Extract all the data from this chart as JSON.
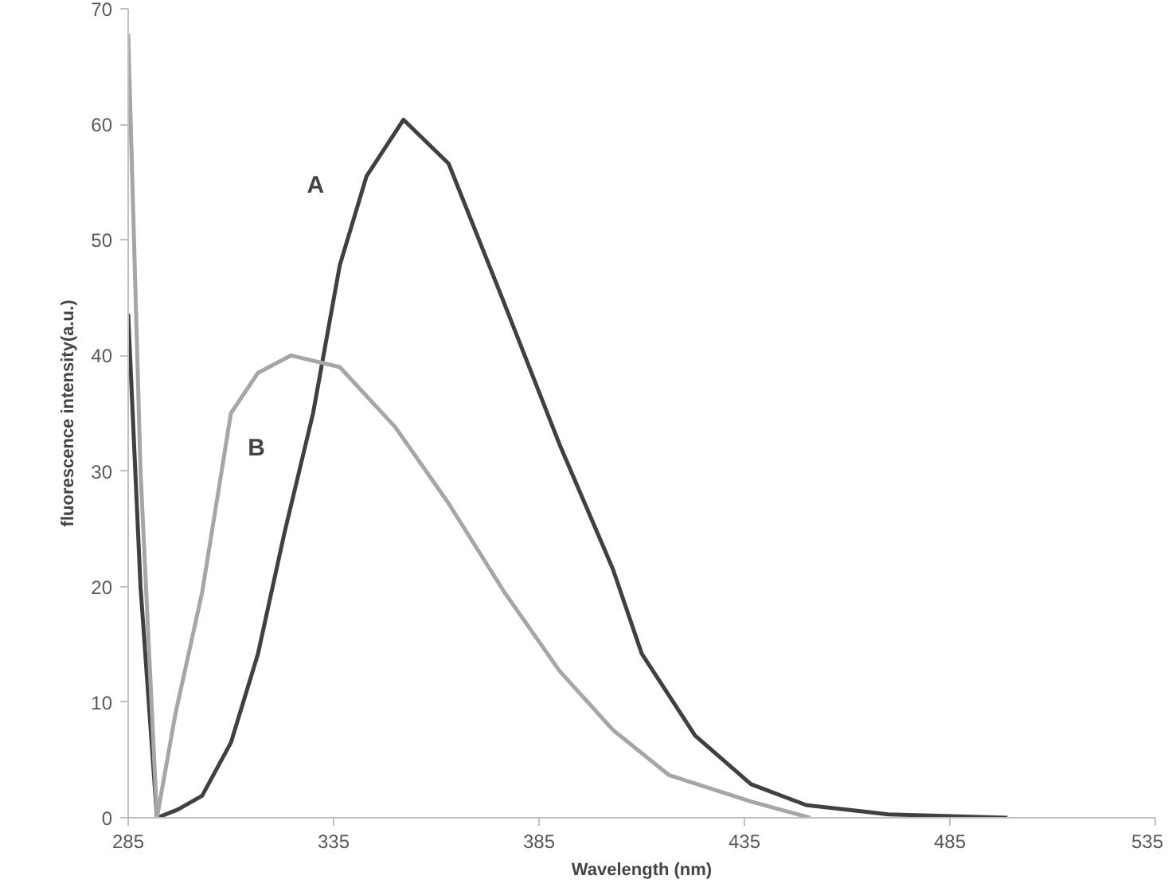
{
  "chart_data": {
    "type": "line",
    "xlabel": "Wavelength (nm)",
    "ylabel": "fluorescence intensity(a.u.)",
    "xlim": [
      285,
      535
    ],
    "xticks": [
      285,
      335,
      385,
      435,
      485,
      535
    ],
    "ylim": [
      0,
      70
    ],
    "yticks": [
      0,
      10,
      20,
      30,
      40,
      50,
      60,
      70
    ],
    "grid": false,
    "marker": "none",
    "line_style": "solid",
    "series": [
      {
        "name": "A",
        "color": "#404040",
        "x": [
          285,
          288,
          292,
          297,
          303,
          310,
          316.6,
          323,
          330,
          336.5,
          343,
          352,
          363,
          376,
          390,
          403,
          410,
          423,
          436.6,
          450,
          470,
          499
        ],
        "values": [
          43.6,
          20,
          0,
          0.7,
          1.9,
          6.5,
          14.2,
          24.6,
          35,
          47.8,
          55.5,
          60.4,
          56.6,
          45,
          32.3,
          21.5,
          14.2,
          7.1,
          2.9,
          1.1,
          0.3,
          0
        ]
      },
      {
        "name": "B",
        "color": "#a6a6a6",
        "x": [
          285,
          288,
          292,
          296.5,
          303,
          310,
          316.6,
          324.6,
          336.5,
          350,
          363,
          376.6,
          390,
          403,
          416.6,
          436.6,
          451
        ],
        "values": [
          67.8,
          30,
          0,
          9,
          19.5,
          35,
          38.5,
          40,
          39,
          33.8,
          27.2,
          19.5,
          12.7,
          7.6,
          3.7,
          1.4,
          0
        ]
      }
    ]
  }
}
